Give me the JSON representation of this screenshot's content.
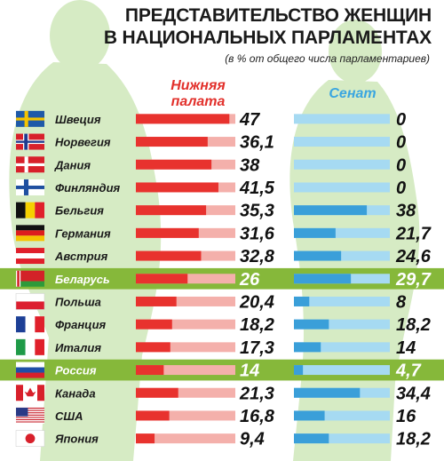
{
  "chart_data": {
    "type": "bar",
    "title_line1": "ПРЕДСТАВИТЕЛЬСТВО ЖЕНЩИН",
    "title_line2": "В НАЦИОНАЛЬНЫХ ПАРЛАМЕНТАХ",
    "subtitle": "(в % от общего числа парламентариев)",
    "xlim": [
      0,
      50
    ],
    "categories": [
      "Швеция",
      "Норвегия",
      "Дания",
      "Финляндия",
      "Бельгия",
      "Германия",
      "Австрия",
      "Беларусь",
      "Польша",
      "Франция",
      "Италия",
      "Россия",
      "Канада",
      "США",
      "Япония"
    ],
    "value_labels": {
      "lower": [
        "47",
        "36,1",
        "38",
        "41,5",
        "35,3",
        "31,6",
        "32,8",
        "26",
        "20,4",
        "18,2",
        "17,3",
        "14",
        "21,3",
        "16,8",
        "9,4"
      ],
      "senate": [
        "0",
        "0",
        "0",
        "0",
        "38",
        "21,7",
        "24,6",
        "29,7",
        "8",
        "18,2",
        "14",
        "4,7",
        "34,4",
        "16",
        "18,2"
      ]
    },
    "series": [
      {
        "name": "Нижняя палата",
        "values": [
          47,
          36.1,
          38,
          41.5,
          35.3,
          31.6,
          32.8,
          26,
          20.4,
          18.2,
          17.3,
          14,
          21.3,
          16.8,
          9.4
        ]
      },
      {
        "name": "Сенат",
        "values": [
          0,
          0,
          0,
          0,
          38,
          21.7,
          24.6,
          29.7,
          8,
          18.2,
          14,
          4.7,
          34.4,
          16,
          18.2
        ]
      }
    ],
    "highlighted": [
      "Беларусь",
      "Россия"
    ],
    "colors": {
      "lower_fill": "#e8322e",
      "lower_track": "#f4b0ab",
      "senate_fill": "#3a9fd9",
      "senate_track": "#a6daf2",
      "highlight_band": "#86b83a",
      "silhouette": "#d6ebc4",
      "senate_header": "#3aa6e0",
      "lower_header": "#e2302b"
    },
    "flags": [
      "sweden-flag",
      "norway-flag",
      "denmark-flag",
      "finland-flag",
      "belgium-flag",
      "germany-flag",
      "austria-flag",
      "belarus-flag",
      "poland-flag",
      "france-flag",
      "italy-flag",
      "russia-flag",
      "canada-flag",
      "usa-flag",
      "japan-flag"
    ]
  }
}
